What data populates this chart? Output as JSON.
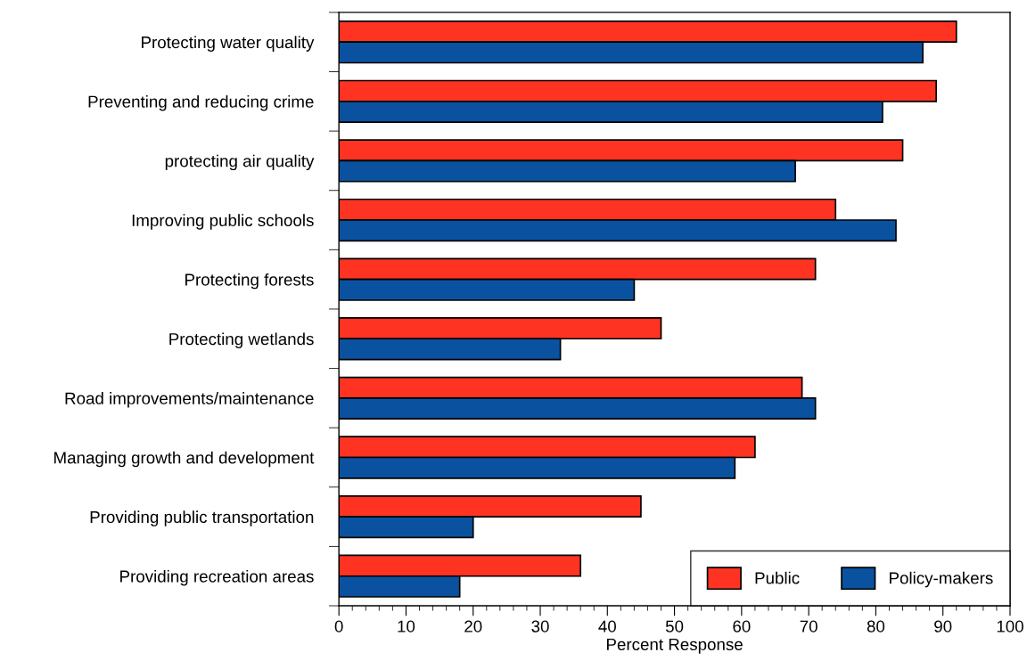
{
  "chart_data": {
    "type": "bar",
    "orientation": "horizontal",
    "xlabel": "Percent Response",
    "categories": [
      "Protecting water quality",
      "Preventing and reducing crime",
      "protecting air quality",
      "Improving public schools",
      "Protecting forests",
      "Protecting wetlands",
      "Road improvements/maintenance",
      "Managing growth and development",
      "Providing public transportation",
      "Providing recreation areas"
    ],
    "series": [
      {
        "name": "Public",
        "color": "#ff3322",
        "values": [
          92,
          89,
          84,
          74,
          71,
          48,
          69,
          62,
          45,
          36
        ]
      },
      {
        "name": "Policy-makers",
        "color": "#0a52a0",
        "values": [
          87,
          81,
          68,
          83,
          44,
          33,
          71,
          59,
          20,
          18
        ]
      }
    ],
    "xlim": [
      0,
      100
    ],
    "xticks": [
      0,
      10,
      20,
      30,
      40,
      50,
      60,
      70,
      80,
      90,
      100
    ],
    "grid": false,
    "legend": "bottom right"
  }
}
